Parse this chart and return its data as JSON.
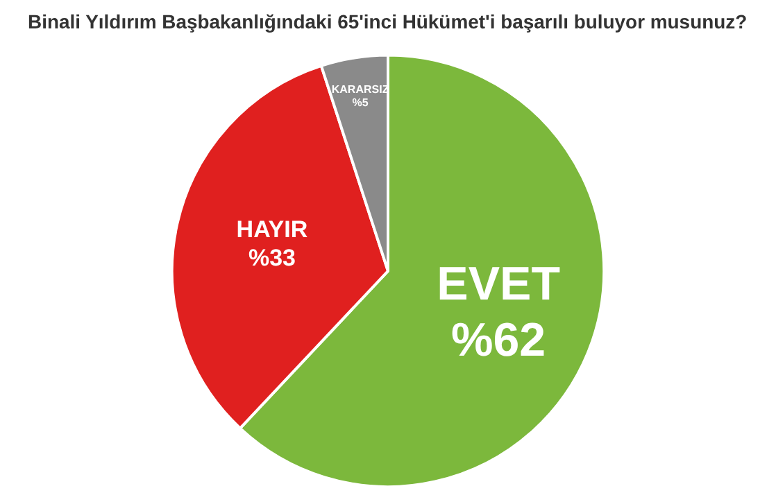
{
  "chart_data": {
    "type": "pie",
    "title": "Binali Yıldırım Başbakanlığındaki 65'inci Hükümet'i başarılı buluyor musunuz?",
    "categories": [
      "EVET",
      "HAYIR",
      "KARARSIZ"
    ],
    "values": [
      62,
      33,
      5
    ],
    "value_labels": [
      "%62",
      "%33",
      "%5"
    ],
    "colors": [
      "#7cb83c",
      "#e0201f",
      "#8a8a8a"
    ],
    "legend": false
  }
}
